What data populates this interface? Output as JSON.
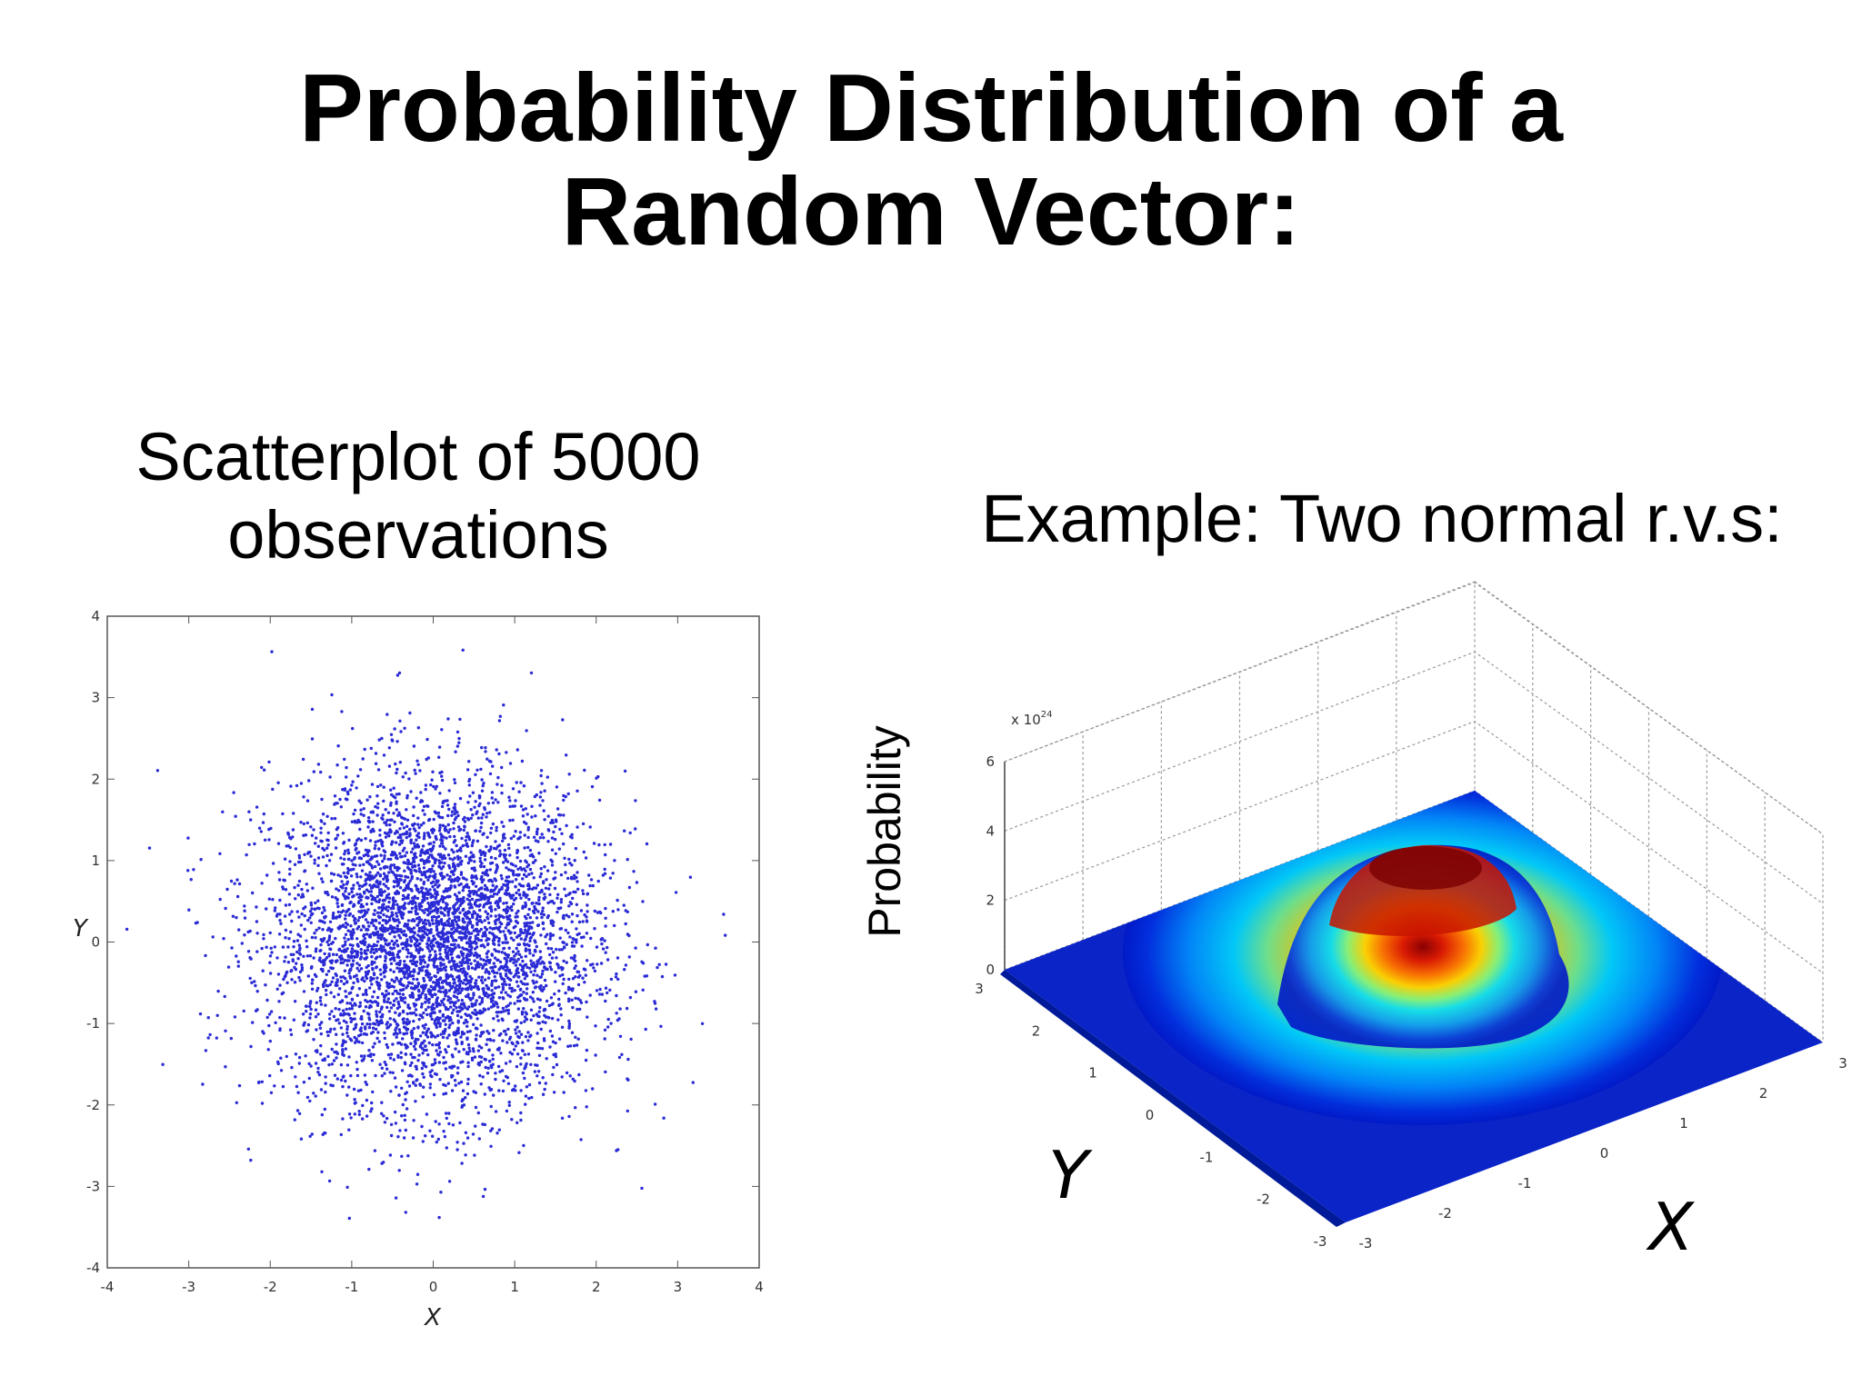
{
  "slide": {
    "title_line1": "Probability Distribution of a",
    "title_line2": "Random Vector:",
    "left_caption_line1": "Scatterplot of 5000",
    "left_caption_line2": "observations",
    "right_caption": "Example: Two normal r.v.s:"
  },
  "chart_data": [
    {
      "type": "scatter",
      "title": "",
      "xlabel": "X",
      "ylabel": "Y",
      "xlim": [
        -4,
        4
      ],
      "ylim": [
        -4,
        4
      ],
      "xticks": [
        "-4",
        "-3",
        "-2",
        "-1",
        "0",
        "1",
        "2",
        "3",
        "4"
      ],
      "yticks": [
        "4",
        "3",
        "2",
        "1",
        "0",
        "-1",
        "-2",
        "-3",
        "-4"
      ],
      "n_points": 5000,
      "distribution": "bivariate standard normal",
      "mean": [
        0,
        0
      ],
      "std": [
        1,
        1
      ],
      "grid": false,
      "marker_color": "#2b2bd6"
    },
    {
      "type": "surface",
      "title": "",
      "xlabel": "X",
      "ylabel": "Y",
      "zlabel": "Probability",
      "zscale_label": "x 10",
      "zscale_exponent": "24",
      "xlim": [
        -3,
        3
      ],
      "ylim": [
        -3,
        3
      ],
      "zlim": [
        0,
        6
      ],
      "xticks": [
        "-3",
        "-2",
        "-1",
        "0",
        "1",
        "2",
        "3"
      ],
      "yticks": [
        "-3",
        "-2",
        "-1",
        "0",
        "1",
        "2",
        "3"
      ],
      "zticks": [
        "0",
        "2",
        "4",
        "6"
      ],
      "peak": 3.5,
      "colormap": "jet",
      "grid": true
    }
  ]
}
